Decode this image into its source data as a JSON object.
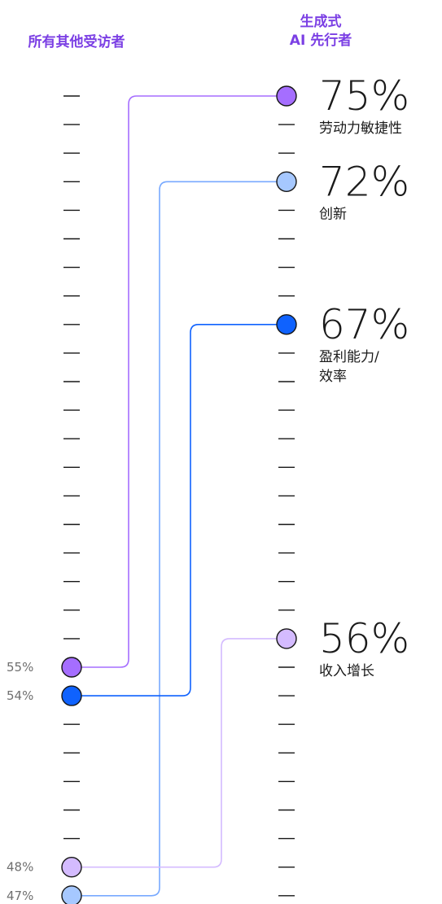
{
  "headers": {
    "left": "所有其他受访者",
    "right_line1": "生成式",
    "right_line2": "AI 先行者"
  },
  "chart_data": {
    "type": "slope",
    "y_unit": "%",
    "ylim": [
      45,
      76
    ],
    "columns": [
      "所有其他受访者",
      "生成式 AI 先行者"
    ],
    "series": [
      {
        "name": "劳动力敏捷性",
        "label_lines": [
          "劳动力敏捷性"
        ],
        "left": 55,
        "right": 75,
        "left_label": "55%",
        "right_label": "75%",
        "color": "#a56eff",
        "line_color": "#a56eff"
      },
      {
        "name": "创新",
        "label_lines": [
          "创新"
        ],
        "left": 47,
        "right": 72,
        "left_label": "47%",
        "right_label": "72%",
        "color": "#a6c8ff",
        "line_color": "#78a9ff"
      },
      {
        "name": "盈利能力/效率",
        "label_lines": [
          "盈利能力/",
          "效率"
        ],
        "left": 54,
        "right": 67,
        "left_label": "54%",
        "right_label": "67%",
        "color": "#0f62fe",
        "line_color": "#0f62fe"
      },
      {
        "name": "收入增长",
        "label_lines": [
          "收入增长"
        ],
        "left": 48,
        "right": 56,
        "left_label": "48%",
        "right_label": "56%",
        "color": "#d4bbff",
        "line_color": "#d4bbff"
      }
    ]
  }
}
